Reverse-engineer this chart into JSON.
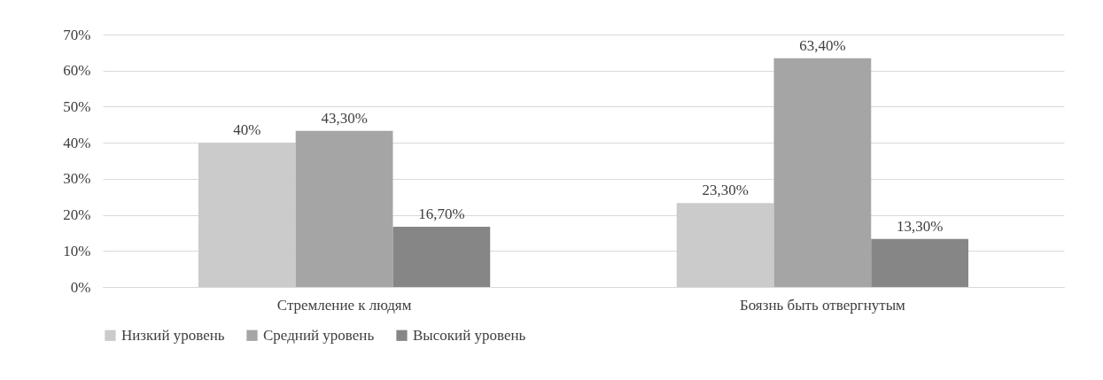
{
  "chart_data": {
    "type": "bar",
    "categories": [
      "Стремление к людям",
      "Боязнь быть отвергнутым"
    ],
    "series": [
      {
        "name": "Низкий уровень",
        "color": "#cbcbcb",
        "values": [
          40,
          23.3
        ],
        "value_labels": [
          "40%",
          "23,30%"
        ]
      },
      {
        "name": "Средний уровень",
        "color": "#a5a5a5",
        "values": [
          43.3,
          63.4
        ],
        "value_labels": [
          "43,30%",
          "63,40%"
        ]
      },
      {
        "name": "Высокий уровень",
        "color": "#868686",
        "values": [
          16.7,
          13.3
        ],
        "value_labels": [
          "16,70%",
          "13,30%"
        ]
      }
    ],
    "ylim": [
      0,
      70
    ],
    "yticks": [
      {
        "value": 0,
        "label": "0%"
      },
      {
        "value": 10,
        "label": "10%"
      },
      {
        "value": 20,
        "label": "20%"
      },
      {
        "value": 30,
        "label": "30%"
      },
      {
        "value": 40,
        "label": "40%"
      },
      {
        "value": 50,
        "label": "50%"
      },
      {
        "value": 60,
        "label": "60%"
      },
      {
        "value": 70,
        "label": "70%"
      }
    ],
    "grid": "y",
    "legend": "bottom"
  }
}
